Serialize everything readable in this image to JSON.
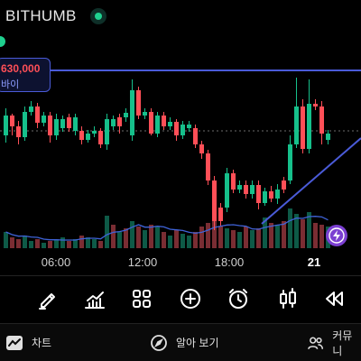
{
  "header": {
    "title": "BITHUMB"
  },
  "price_tag": {
    "value": "630,000",
    "label": "바이"
  },
  "xaxis": {
    "ticks": [
      "06:00",
      "12:00",
      "18:00",
      "21"
    ]
  },
  "colors": {
    "up": "#16c08b",
    "down": "#ff4f57",
    "line": "#4a5bd8",
    "volume_ma": "#3f63d8",
    "accent": "#7b3fd1"
  },
  "toolbar": {
    "icons": [
      "pencil-icon",
      "indicator-icon",
      "grid-icon",
      "add-icon",
      "alarm-icon",
      "candlestick-icon",
      "rewind-icon"
    ]
  },
  "bottom_nav": {
    "chart_label": "차트",
    "learn_label": "알아 보기",
    "community_label": "커뮤니"
  },
  "chart_data": {
    "type": "candlestick",
    "x": [
      "06:00",
      "12:00",
      "18:00",
      "21"
    ],
    "up_color": "#16c08b",
    "down_color": "#ff4f57",
    "candles": [
      [
        "u",
        150,
        128,
        158,
        120
      ],
      [
        "d",
        128,
        140,
        150,
        126
      ],
      [
        "d",
        140,
        152,
        160,
        134
      ],
      [
        "u",
        152,
        124,
        156,
        118
      ],
      [
        "u",
        124,
        118,
        128,
        112
      ],
      [
        "d",
        118,
        136,
        142,
        114
      ],
      [
        "u",
        136,
        128,
        140,
        124
      ],
      [
        "d",
        128,
        150,
        158,
        124
      ],
      [
        "u",
        150,
        132,
        155,
        126
      ],
      [
        "u",
        132,
        142,
        146,
        128
      ],
      [
        "d",
        142,
        130,
        146,
        126
      ],
      [
        "u",
        130,
        145,
        150,
        126
      ],
      [
        "d",
        145,
        155,
        160,
        140
      ],
      [
        "u",
        155,
        148,
        158,
        144
      ],
      [
        "u",
        148,
        145,
        152,
        140
      ],
      [
        "d",
        145,
        160,
        164,
        142
      ],
      [
        "u",
        160,
        132,
        166,
        126
      ],
      [
        "u",
        132,
        140,
        144,
        128
      ],
      [
        "d",
        140,
        130,
        148,
        126
      ],
      [
        "u",
        130,
        125,
        135,
        120
      ],
      [
        "u",
        150,
        100,
        156,
        88
      ],
      [
        "d",
        100,
        128,
        132,
        96
      ],
      [
        "u",
        128,
        124,
        132,
        120
      ],
      [
        "d",
        124,
        148,
        150,
        120
      ],
      [
        "u",
        148,
        128,
        152,
        124
      ],
      [
        "d",
        128,
        140,
        144,
        124
      ],
      [
        "u",
        140,
        135,
        144,
        130
      ],
      [
        "d",
        135,
        150,
        156,
        132
      ],
      [
        "u",
        150,
        138,
        154,
        134
      ],
      [
        "u",
        138,
        142,
        146,
        134
      ],
      [
        "d",
        142,
        160,
        164,
        138
      ],
      [
        "d",
        160,
        170,
        176,
        156
      ],
      [
        "d",
        170,
        200,
        205,
        166
      ],
      [
        "d",
        200,
        245,
        255,
        195
      ],
      [
        "d",
        245,
        230,
        250,
        225
      ],
      [
        "u",
        230,
        192,
        235,
        186
      ],
      [
        "d",
        192,
        210,
        214,
        188
      ],
      [
        "u",
        210,
        205,
        214,
        200
      ],
      [
        "d",
        205,
        215,
        220,
        200
      ],
      [
        "u",
        215,
        205,
        220,
        200
      ],
      [
        "d",
        205,
        225,
        232,
        200
      ],
      [
        "u",
        225,
        212,
        228,
        208
      ],
      [
        "d",
        212,
        220,
        224,
        206
      ],
      [
        "u",
        220,
        210,
        226,
        204
      ],
      [
        "d",
        210,
        200,
        214,
        196
      ],
      [
        "u",
        200,
        160,
        204,
        150
      ],
      [
        "u",
        160,
        118,
        164,
        86
      ],
      [
        "d",
        118,
        165,
        170,
        110
      ],
      [
        "u",
        165,
        115,
        170,
        88
      ],
      [
        "d",
        115,
        118,
        122,
        110
      ],
      [
        "d",
        118,
        148,
        160,
        112
      ],
      [
        "u",
        148,
        155,
        160,
        144
      ]
    ],
    "volumes": [
      [
        "u",
        18
      ],
      [
        "d",
        12
      ],
      [
        "d",
        10
      ],
      [
        "u",
        14
      ],
      [
        "u",
        8
      ],
      [
        "d",
        10
      ],
      [
        "u",
        6
      ],
      [
        "d",
        8
      ],
      [
        "u",
        10
      ],
      [
        "u",
        12
      ],
      [
        "d",
        8
      ],
      [
        "u",
        10
      ],
      [
        "d",
        14
      ],
      [
        "u",
        12
      ],
      [
        "u",
        10
      ],
      [
        "d",
        8
      ],
      [
        "u",
        36
      ],
      [
        "d",
        26
      ],
      [
        "u",
        18
      ],
      [
        "d",
        22
      ],
      [
        "u",
        30
      ],
      [
        "d",
        24
      ],
      [
        "u",
        20
      ],
      [
        "d",
        26
      ],
      [
        "u",
        24
      ],
      [
        "d",
        18
      ],
      [
        "u",
        14
      ],
      [
        "d",
        20
      ],
      [
        "u",
        16
      ],
      [
        "u",
        14
      ],
      [
        "d",
        18
      ],
      [
        "d",
        24
      ],
      [
        "d",
        28
      ],
      [
        "d",
        38
      ],
      [
        "d",
        24
      ],
      [
        "u",
        22
      ],
      [
        "d",
        20
      ],
      [
        "u",
        18
      ],
      [
        "d",
        24
      ],
      [
        "u",
        20
      ],
      [
        "d",
        22
      ],
      [
        "u",
        34
      ],
      [
        "d",
        28
      ],
      [
        "u",
        26
      ],
      [
        "d",
        30
      ],
      [
        "u",
        44
      ],
      [
        "u",
        38
      ],
      [
        "d",
        32
      ],
      [
        "u",
        40
      ],
      [
        "d",
        28
      ],
      [
        "d",
        26
      ],
      [
        "u",
        24
      ]
    ]
  }
}
